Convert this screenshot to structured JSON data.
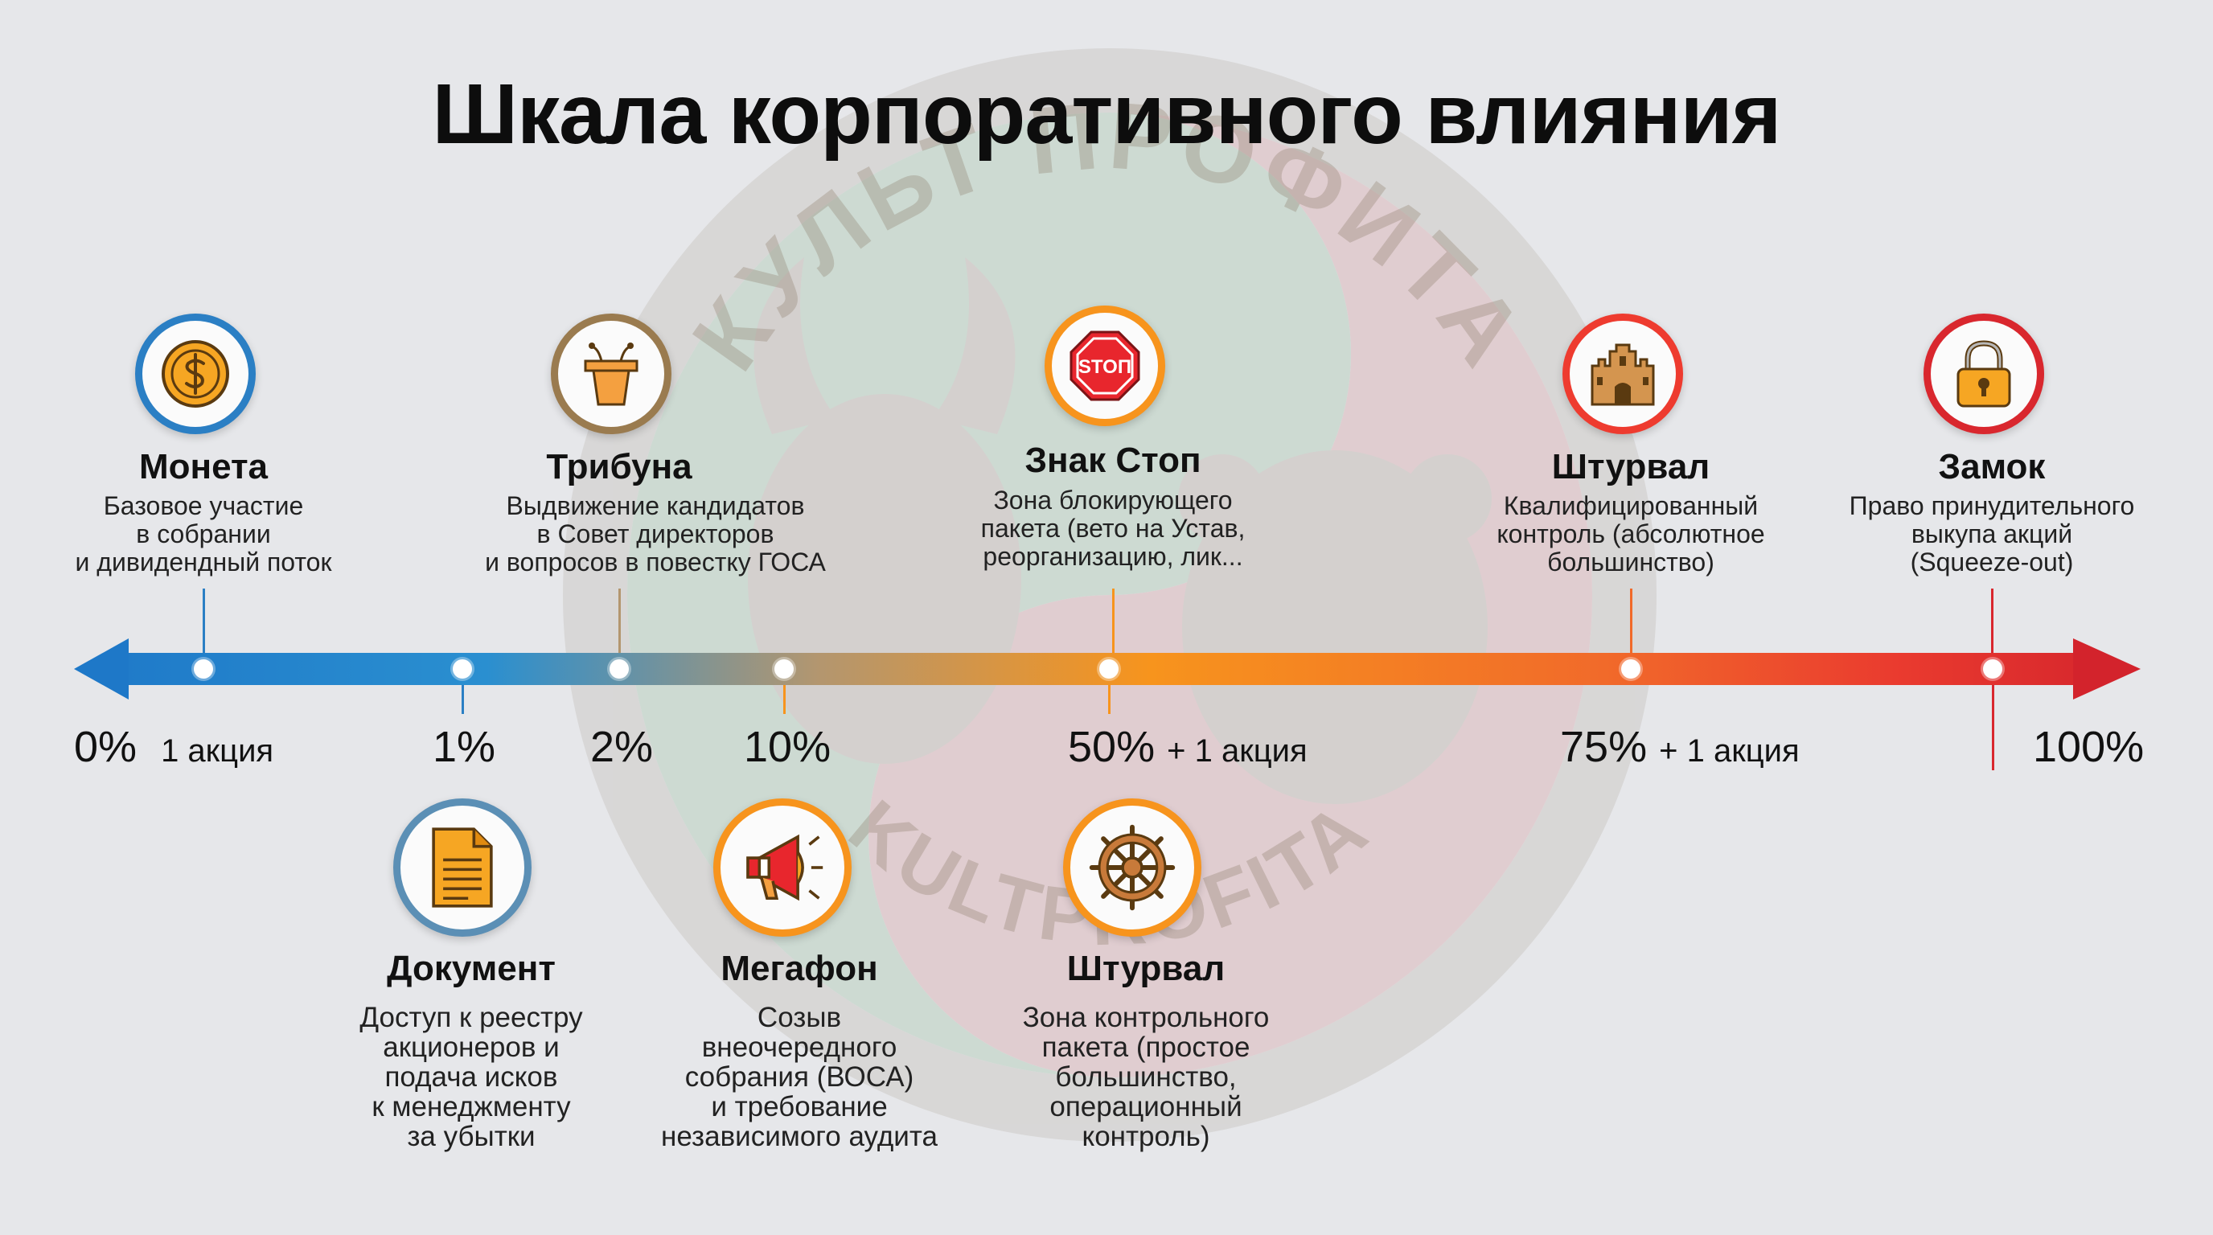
{
  "title": "Шкала корпоративного влияния",
  "watermark_text_top": "КУЛЬТ ПРОФИТА",
  "watermark_text_bottom": "KULTPROFITA",
  "colors": {
    "blue": "#1f86c9",
    "orange": "#f7941d",
    "red": "#d9272e",
    "bronze": "#9a7b4f"
  },
  "scale": [
    {
      "label": "0%",
      "suffix": "1 акция"
    },
    {
      "label": "1%",
      "suffix": ""
    },
    {
      "label": "2%",
      "suffix": ""
    },
    {
      "label": "10%",
      "suffix": ""
    },
    {
      "label": "50%",
      "suffix": "+ 1 акция"
    },
    {
      "label": "75%",
      "suffix": "+ 1 акция"
    },
    {
      "label": "100%",
      "suffix": ""
    }
  ],
  "upper": [
    {
      "name": "Монета",
      "desc": "Базовое участие\nв собрании\nи дивидендный поток",
      "icon": "coin-icon"
    },
    {
      "name": "Трибуна",
      "desc": "Выдвижение кандидатов\nв Совет директоров\nи вопросов в повестку ГОСА",
      "icon": "podium-icon"
    },
    {
      "name": "Знак Стоп",
      "desc": "Зона блокирующего\nпакета (вето на Устав,\nреорганизацию, лик...",
      "icon": "stop-sign-icon",
      "icon_text": "STOП"
    },
    {
      "name": "Штурвал",
      "desc": "Квалифицированный\nконтроль (абсолютное\nбольшинство)",
      "icon": "castle-icon"
    },
    {
      "name": "Замок",
      "desc": "Право принудительного\nвыкупа акций\n(Squeeze-out)",
      "icon": "padlock-icon"
    }
  ],
  "lower": [
    {
      "name": "Документ",
      "desc": "Доступ к реестру\nакционеров и\nподача исков\nк менеджменту\nза убытки",
      "icon": "document-icon"
    },
    {
      "name": "Мегафон",
      "desc": "Созыв\nвнеочередного\nсобрания (ВОСА)\nи требование\nнезависимого аудита",
      "icon": "megaphone-icon"
    },
    {
      "name": "Штурвал",
      "desc": "Зона контрольного\nпакета (простое\nбольшинство,\nоперационный\nконтроль)",
      "icon": "ship-wheel-icon"
    }
  ]
}
